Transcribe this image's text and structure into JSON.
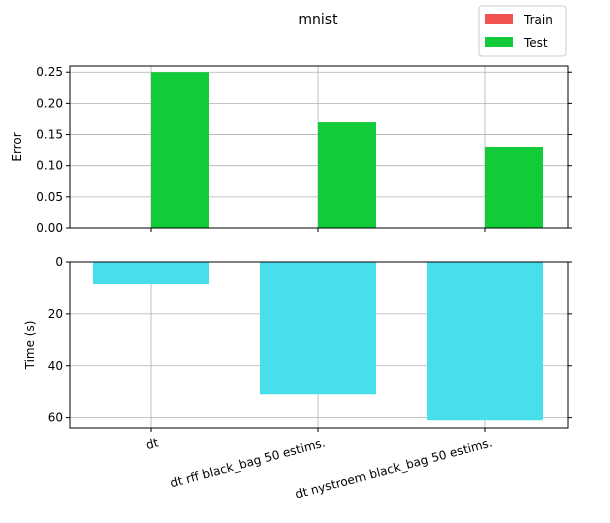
{
  "chart_data": [
    {
      "type": "bar",
      "title": "mnist",
      "ylabel": "Error",
      "categories": [
        "dt",
        "dt rff black_bag 50 estims.",
        "dt nystroem black_bag 50 estims."
      ],
      "yticks": [
        "0.00",
        "0.05",
        "0.10",
        "0.15",
        "0.20",
        "0.25"
      ],
      "ylim": [
        0,
        0.26
      ],
      "grid": true,
      "legend": {
        "placement": "top-right",
        "entries": [
          "Train",
          "Test"
        ]
      },
      "series": [
        {
          "name": "Train",
          "color": "#f0524f",
          "values": [
            0,
            0,
            0
          ]
        },
        {
          "name": "Test",
          "color": "#11cc38",
          "values": [
            0.25,
            0.17,
            0.13
          ]
        }
      ]
    },
    {
      "type": "bar",
      "ylabel": "Time (s)",
      "categories": [
        "dt",
        "dt rff black_bag 50 estims.",
        "dt nystroem black_bag 50 estims."
      ],
      "yticks": [
        "0",
        "20",
        "40",
        "60"
      ],
      "ylim": [
        0,
        64
      ],
      "inverted_y": true,
      "grid": true,
      "series": [
        {
          "color": "#48dfec",
          "values": [
            8.5,
            51,
            61
          ]
        }
      ]
    }
  ]
}
